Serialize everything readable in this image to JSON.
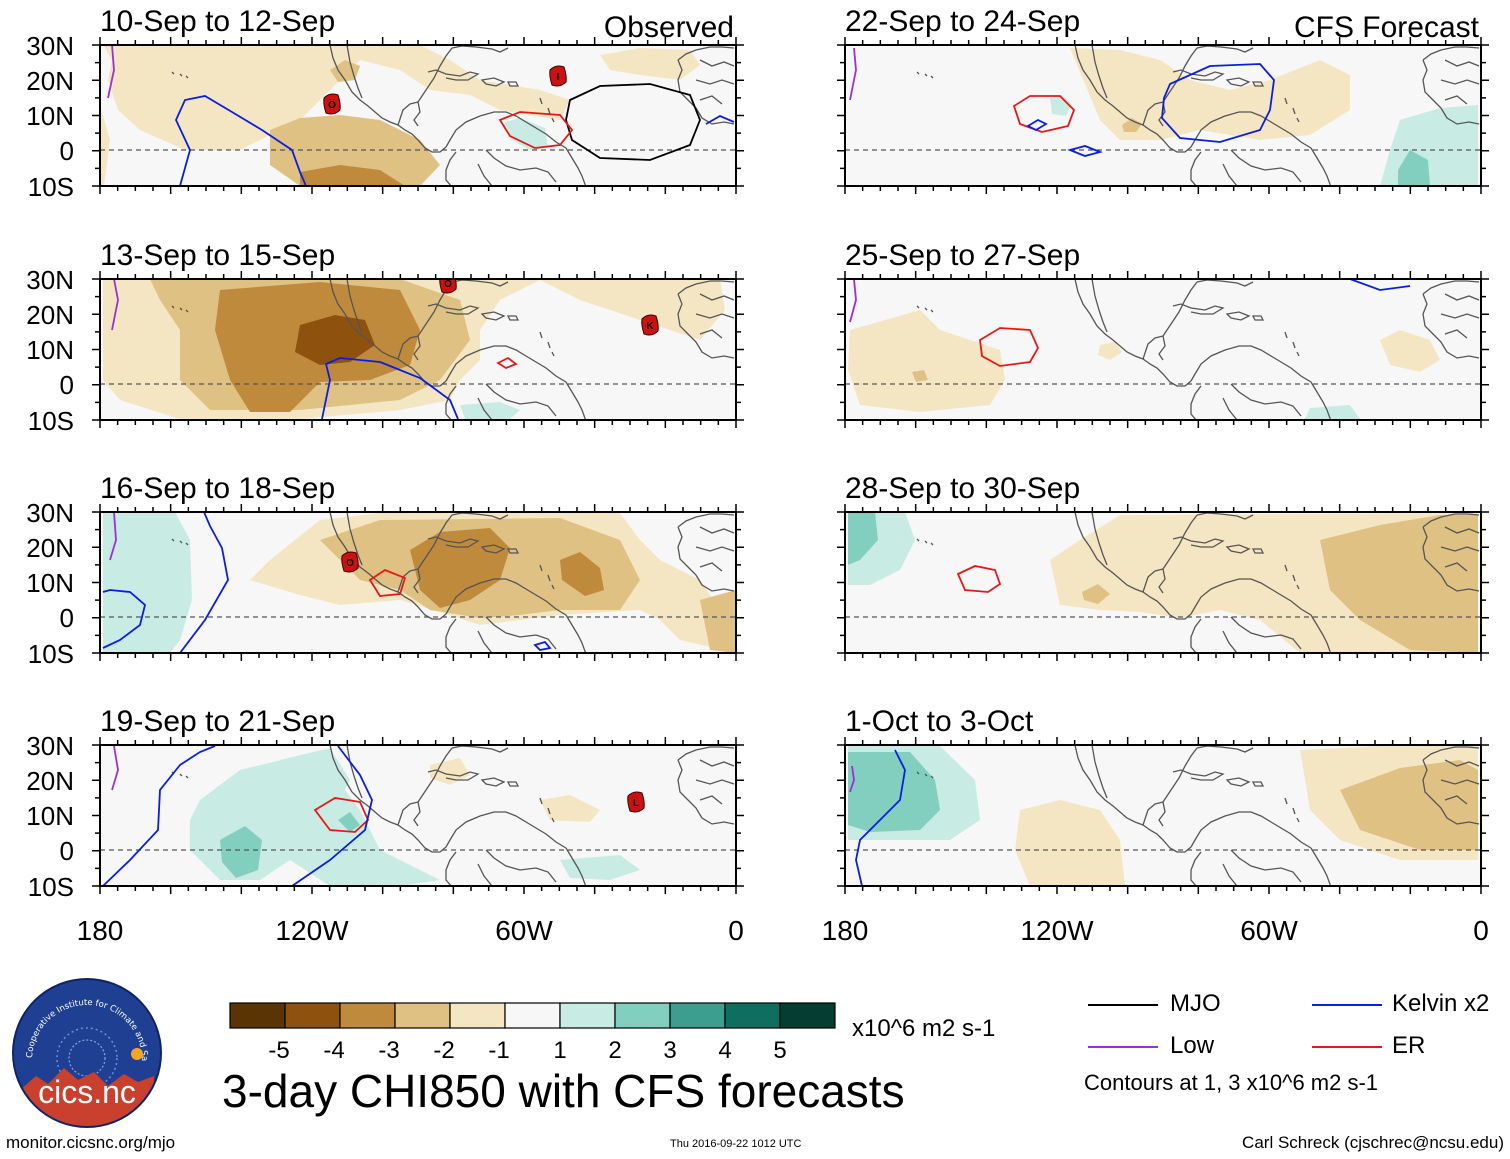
{
  "colors": {
    "levels": [
      "#5a3404",
      "#8e520e",
      "#c08a3c",
      "#dfc183",
      "#f5e6c3",
      "#f7f7f7",
      "#c8ece3",
      "#82cfc0",
      "#3b9e8f",
      "#0e6e60",
      "#063d33"
    ],
    "mjo": "#000000",
    "low": "#9b30d9",
    "kelvin": "#0a1ee0",
    "er": "#e81818",
    "land": "#f7f7f7"
  },
  "panels": [
    {
      "id": "p1",
      "title": "10-Sep to 12-Sep",
      "tag": "Observed"
    },
    {
      "id": "p2",
      "title": "22-Sep to 24-Sep",
      "tag": "CFS Forecast"
    },
    {
      "id": "p3",
      "title": "13-Sep to 15-Sep",
      "tag": ""
    },
    {
      "id": "p4",
      "title": "25-Sep to 27-Sep",
      "tag": ""
    },
    {
      "id": "p5",
      "title": "16-Sep to 18-Sep",
      "tag": ""
    },
    {
      "id": "p6",
      "title": "28-Sep to 30-Sep",
      "tag": ""
    },
    {
      "id": "p7",
      "title": "19-Sep to 21-Sep",
      "tag": ""
    },
    {
      "id": "p8",
      "title": "1-Oct to 3-Oct",
      "tag": ""
    }
  ],
  "lat_labels": [
    "30N",
    "20N",
    "10N",
    "0",
    "10S"
  ],
  "lon_labels": [
    "180",
    "120W",
    "60W",
    "0"
  ],
  "storm_labels": [
    "O",
    "I",
    "K",
    "L"
  ],
  "colorbar": {
    "ticks": [
      "-5",
      "-4",
      "-3",
      "-2",
      "-1",
      "1",
      "2",
      "3",
      "4",
      "5"
    ],
    "units": "x10^6 m2 s-1"
  },
  "main_title": "3-day CHI850 with CFS forecasts",
  "legend": {
    "items": [
      "MJO",
      "Kelvin x2",
      "Low",
      "ER"
    ],
    "note": "Contours at 1, 3 x10^6 m2 s-1"
  },
  "logo": {
    "arc_text": "Cooperative Institute for Climate and Satellites",
    "name": "cics.nc"
  },
  "footer": {
    "url": "monitor.cicsnc.org/mjo",
    "timestamp": "Thu 2016-09-22 1012 UTC",
    "credit": "Carl Schreck (cjschrec@ncsu.edu)"
  }
}
